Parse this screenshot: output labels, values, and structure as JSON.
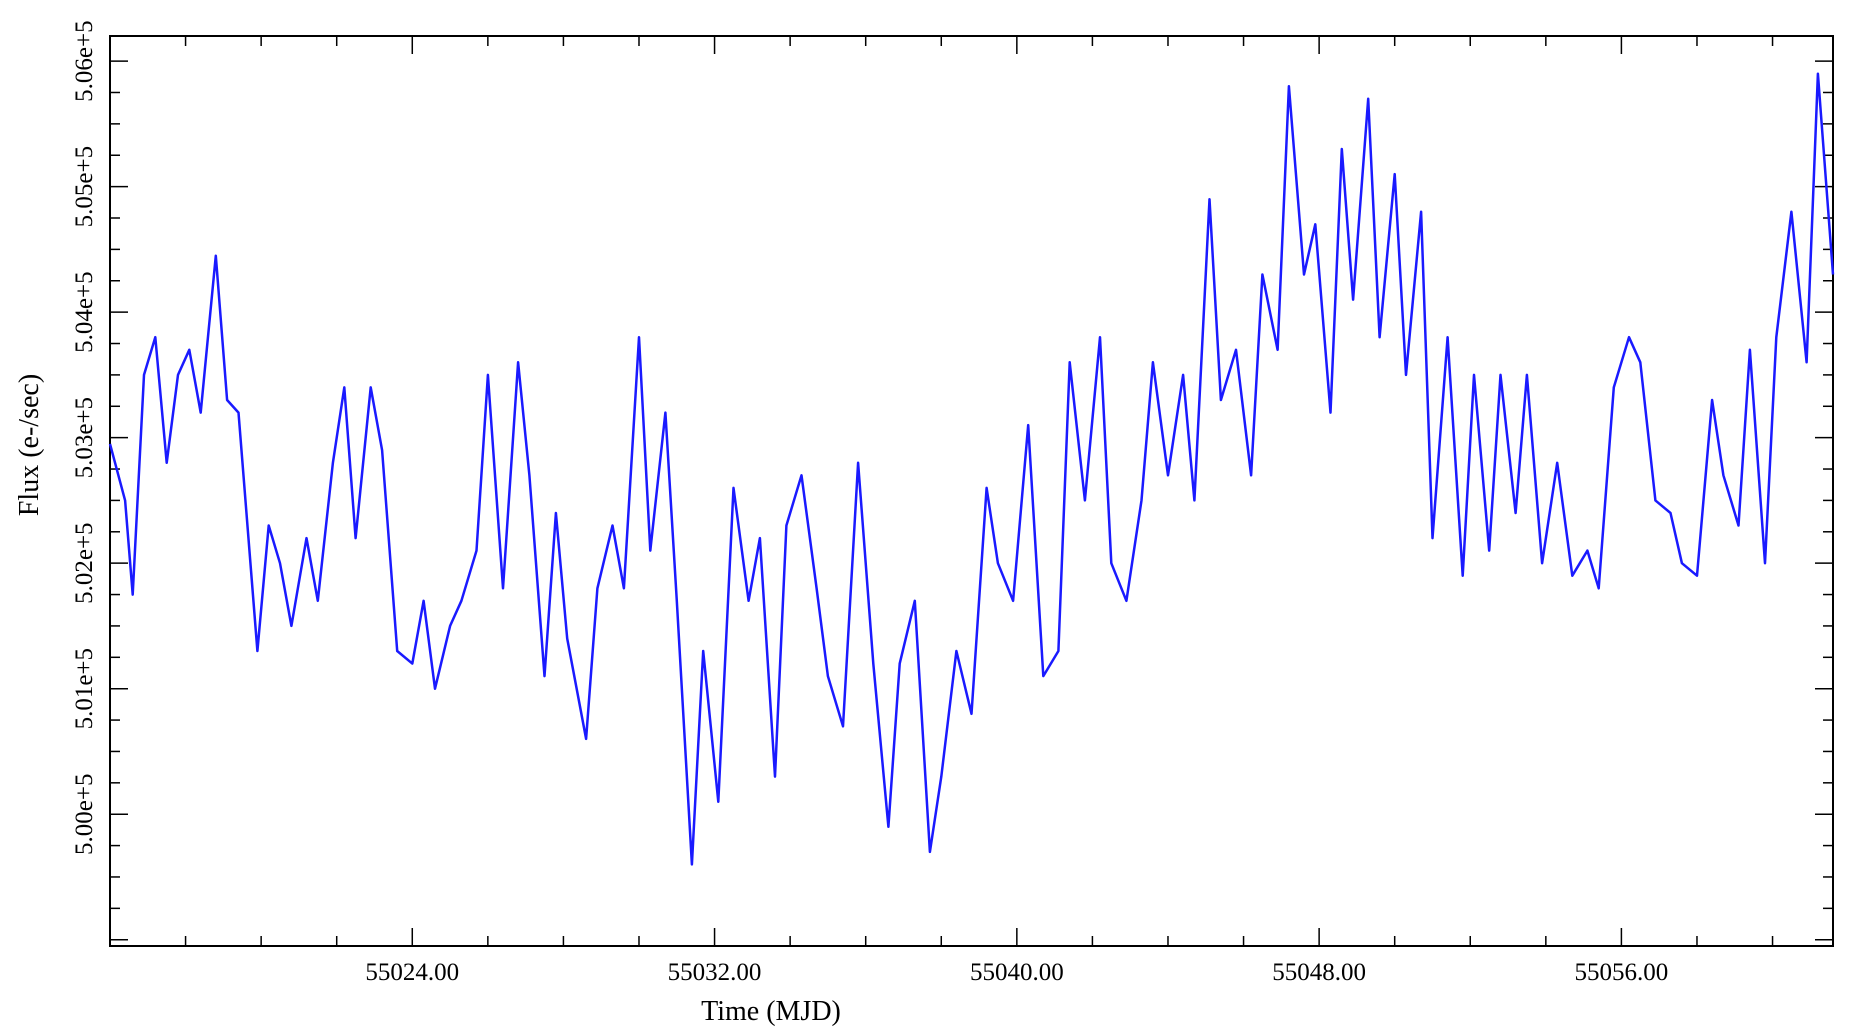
{
  "chart_data": {
    "type": "line",
    "title": "",
    "xlabel": "Time (MJD)",
    "ylabel": "Flux (e-/sec)",
    "xlim": [
      55016.0,
      55061.6
    ],
    "ylim": [
      49990.0,
      505100.0
    ],
    "ylim_note": "",
    "x_ticks": [
      {
        "value": 55024,
        "label": "55024.00"
      },
      {
        "value": 55032,
        "label": "55032.00"
      },
      {
        "value": 55040,
        "label": "55040.00"
      },
      {
        "value": 55048,
        "label": "55048.00"
      },
      {
        "value": 55056,
        "label": "55056.00"
      }
    ],
    "y_ticks": [
      {
        "value": 500000,
        "label": "5.00e+5"
      },
      {
        "value": 501000,
        "label": "5.01e+5"
      },
      {
        "value": 502000,
        "label": "5.02e+5"
      },
      {
        "value": 503000,
        "label": "5.03e+5"
      },
      {
        "value": 504000,
        "label": "5.04e+5"
      },
      {
        "value": 505000,
        "label": "5.05e+5"
      },
      {
        "value": 506000,
        "label": "5.06e+5"
      }
    ],
    "grid": false,
    "legend": "none",
    "series": [
      {
        "color": "#1a1aff",
        "points": [
          [
            55016.0,
            502950
          ],
          [
            55016.4,
            502500
          ],
          [
            55016.6,
            501750
          ],
          [
            55016.9,
            503500
          ],
          [
            55017.2,
            503800
          ],
          [
            55017.5,
            502800
          ],
          [
            55017.8,
            503500
          ],
          [
            55018.1,
            503700
          ],
          [
            55018.4,
            503200
          ],
          [
            55018.8,
            504450
          ],
          [
            55019.1,
            503300
          ],
          [
            55019.4,
            503200
          ],
          [
            55019.9,
            501300
          ],
          [
            55020.2,
            502300
          ],
          [
            55020.5,
            502000
          ],
          [
            55020.8,
            501500
          ],
          [
            55021.2,
            502200
          ],
          [
            55021.5,
            501700
          ],
          [
            55021.9,
            502800
          ],
          [
            55022.2,
            503400
          ],
          [
            55022.5,
            502200
          ],
          [
            55022.9,
            503400
          ],
          [
            55023.2,
            502900
          ],
          [
            55023.6,
            501300
          ],
          [
            55024.0,
            501200
          ],
          [
            55024.3,
            501700
          ],
          [
            55024.6,
            501000
          ],
          [
            55025.0,
            501500
          ],
          [
            55025.3,
            501700
          ],
          [
            55025.7,
            502100
          ],
          [
            55026.0,
            503500
          ],
          [
            55026.4,
            501800
          ],
          [
            55026.8,
            503600
          ],
          [
            55027.1,
            502700
          ],
          [
            55027.5,
            501100
          ],
          [
            55027.8,
            502400
          ],
          [
            55028.1,
            501400
          ],
          [
            55028.6,
            500600
          ],
          [
            55028.9,
            501800
          ],
          [
            55029.3,
            502300
          ],
          [
            55029.6,
            501800
          ],
          [
            55030.0,
            503800
          ],
          [
            55030.3,
            502100
          ],
          [
            55030.7,
            503200
          ],
          [
            55031.0,
            501700
          ],
          [
            55031.4,
            499600
          ],
          [
            55031.7,
            501300
          ],
          [
            55032.1,
            500100
          ],
          [
            55032.5,
            502600
          ],
          [
            55032.9,
            501700
          ],
          [
            55033.2,
            502200
          ],
          [
            55033.6,
            500300
          ],
          [
            55033.9,
            502300
          ],
          [
            55034.3,
            502700
          ],
          [
            55034.7,
            501800
          ],
          [
            55035.0,
            501100
          ],
          [
            55035.4,
            500700
          ],
          [
            55035.8,
            502800
          ],
          [
            55036.2,
            501200
          ],
          [
            55036.6,
            499900
          ],
          [
            55036.9,
            501200
          ],
          [
            55037.3,
            501700
          ],
          [
            55037.7,
            499700
          ],
          [
            55038.0,
            500300
          ],
          [
            55038.4,
            501300
          ],
          [
            55038.8,
            500800
          ],
          [
            55039.2,
            502600
          ],
          [
            55039.5,
            502000
          ],
          [
            55039.9,
            501700
          ],
          [
            55040.3,
            503100
          ],
          [
            55040.7,
            501100
          ],
          [
            55041.1,
            501300
          ],
          [
            55041.4,
            503600
          ],
          [
            55041.8,
            502500
          ],
          [
            55042.2,
            503800
          ],
          [
            55042.5,
            502000
          ],
          [
            55042.9,
            501700
          ],
          [
            55043.3,
            502500
          ],
          [
            55043.6,
            503600
          ],
          [
            55044.0,
            502700
          ],
          [
            55044.4,
            503500
          ],
          [
            55044.7,
            502500
          ],
          [
            55045.1,
            504900
          ],
          [
            55045.4,
            503300
          ],
          [
            55045.8,
            503700
          ],
          [
            55046.2,
            502700
          ],
          [
            55046.5,
            504300
          ],
          [
            55046.9,
            503700
          ],
          [
            55047.2,
            505800
          ],
          [
            55047.6,
            504300
          ],
          [
            55047.9,
            504700
          ],
          [
            55048.3,
            503200
          ],
          [
            55048.6,
            505300
          ],
          [
            55048.9,
            504100
          ],
          [
            55049.3,
            505700
          ],
          [
            55049.6,
            503800
          ],
          [
            55050.0,
            505100
          ],
          [
            55050.3,
            503500
          ],
          [
            55050.7,
            504800
          ],
          [
            55051.0,
            502200
          ],
          [
            55051.4,
            503800
          ],
          [
            55051.8,
            501900
          ],
          [
            55052.1,
            503500
          ],
          [
            55052.5,
            502100
          ],
          [
            55052.8,
            503500
          ],
          [
            55053.2,
            502400
          ],
          [
            55053.5,
            503500
          ],
          [
            55053.9,
            502000
          ],
          [
            55054.3,
            502800
          ],
          [
            55054.7,
            501900
          ],
          [
            55055.1,
            502100
          ],
          [
            55055.4,
            501800
          ],
          [
            55055.8,
            503400
          ],
          [
            55056.2,
            503800
          ],
          [
            55056.5,
            503600
          ],
          [
            55056.9,
            502500
          ],
          [
            55057.3,
            502400
          ],
          [
            55057.6,
            502000
          ],
          [
            55058.0,
            501900
          ],
          [
            55058.4,
            503300
          ],
          [
            55058.7,
            502700
          ],
          [
            55059.1,
            502300
          ],
          [
            55059.4,
            503700
          ],
          [
            55059.8,
            502000
          ],
          [
            55060.1,
            503800
          ],
          [
            55060.5,
            504800
          ],
          [
            55060.9,
            503600
          ],
          [
            55061.2,
            505900
          ],
          [
            55061.6,
            504300
          ]
        ]
      }
    ]
  }
}
